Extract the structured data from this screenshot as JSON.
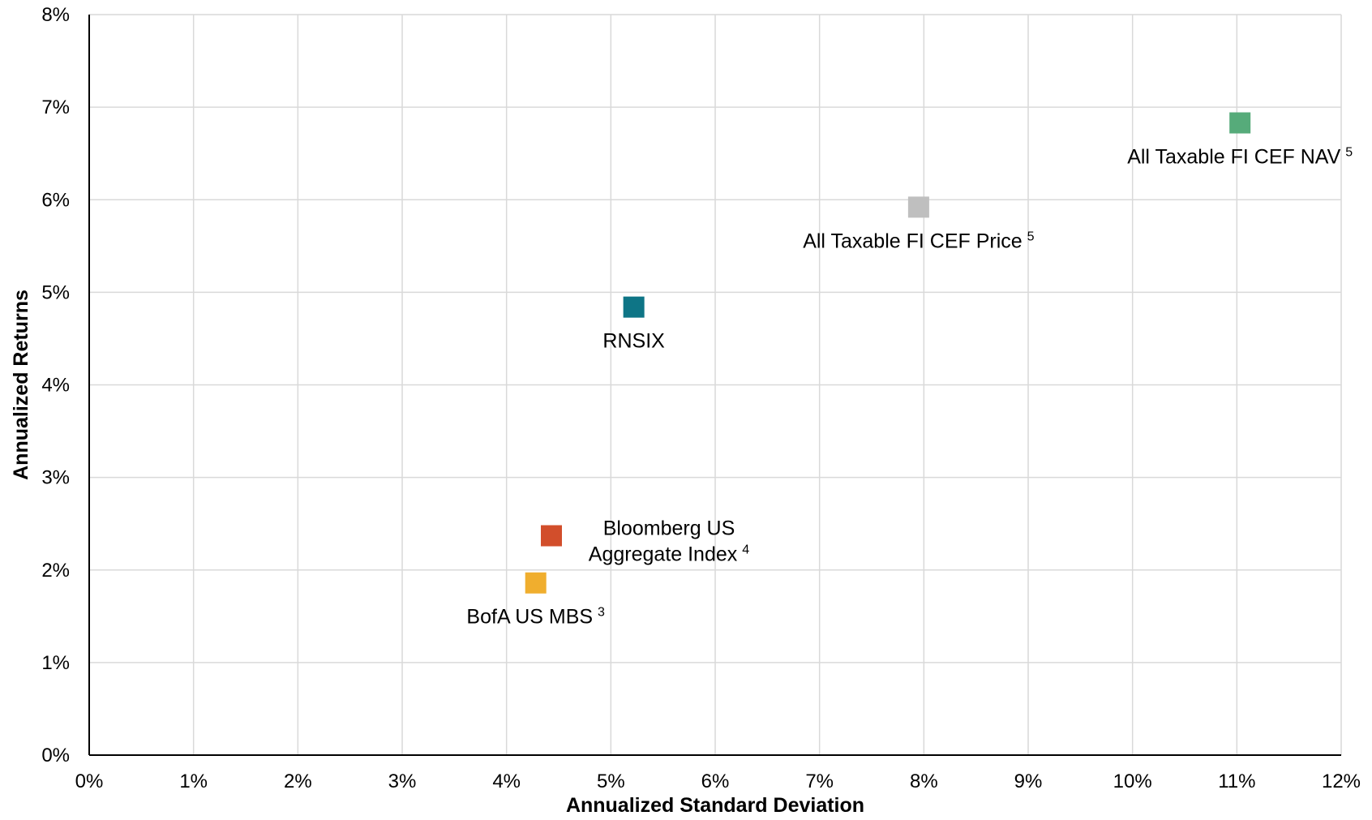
{
  "chart_data": {
    "type": "scatter",
    "xlabel": "Annualized Standard Deviation",
    "ylabel": "Annualized Returns",
    "xlim": [
      0,
      12
    ],
    "ylim": [
      0,
      8
    ],
    "x_ticks": [
      "0%",
      "1%",
      "2%",
      "3%",
      "4%",
      "5%",
      "6%",
      "7%",
      "8%",
      "9%",
      "10%",
      "11%",
      "12%"
    ],
    "y_ticks": [
      "0%",
      "1%",
      "2%",
      "3%",
      "4%",
      "5%",
      "6%",
      "7%",
      "8%"
    ],
    "grid": true,
    "legend": "none",
    "points": [
      {
        "label": "All Taxable FI CEF NAV",
        "sup": "5",
        "x": 11.03,
        "y": 6.83,
        "color": "#56ab7a",
        "label_pos": "below"
      },
      {
        "label": "All Taxable FI CEF Price",
        "sup": "5",
        "x": 7.95,
        "y": 5.92,
        "color": "#bfbfbf",
        "label_pos": "below"
      },
      {
        "label": "RNSIX",
        "sup": "",
        "x": 5.22,
        "y": 4.84,
        "color": "#0e7586",
        "label_pos": "below"
      },
      {
        "label": "Bloomberg US Aggregate Index",
        "label_lines": [
          "Bloomberg US",
          "Aggregate Index"
        ],
        "sup": "4",
        "x": 4.43,
        "y": 2.37,
        "color": "#d24e2b",
        "label_pos": "right"
      },
      {
        "label": "BofA US MBS",
        "sup": "3",
        "x": 4.28,
        "y": 1.86,
        "color": "#f0ae2e",
        "label_pos": "below"
      }
    ]
  }
}
